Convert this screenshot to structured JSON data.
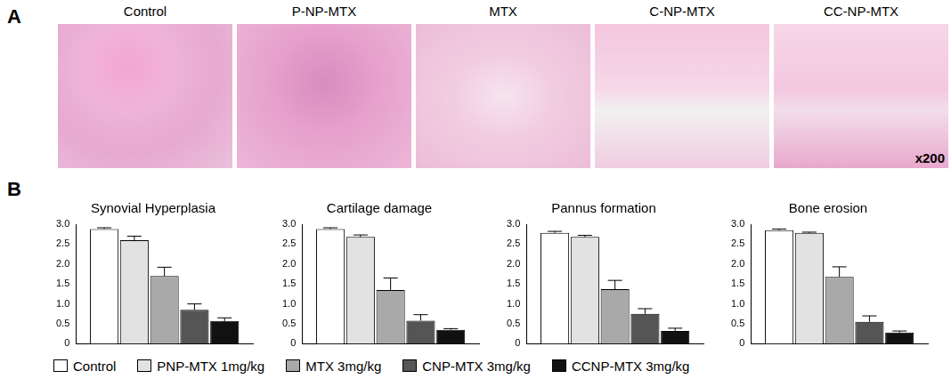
{
  "panels": {
    "A": {
      "letter": "A",
      "images": [
        {
          "label": "Control"
        },
        {
          "label": "P-NP-MTX"
        },
        {
          "label": "MTX"
        },
        {
          "label": "C-NP-MTX"
        },
        {
          "label": "CC-NP-MTX"
        }
      ],
      "magnification": "x200"
    },
    "B": {
      "letter": "B"
    }
  },
  "chart_data": [
    {
      "type": "bar",
      "title": "Synovial Hyperplasia",
      "categories": [
        null
      ],
      "ylim": [
        0,
        3
      ],
      "yticks": [
        0,
        0.5,
        {
          "value": 1,
          "label": "1.0"
        },
        1.5,
        {
          "value": 2,
          "label": "2.0"
        },
        2.5,
        {
          "value": 3,
          "label": "3.0"
        }
      ],
      "grid": false,
      "tick_labels": "y",
      "legend": "bottom",
      "series": [
        {
          "name": "Control",
          "color": "#ffffff",
          "values": [
            2.88
          ],
          "errors": [
            0.03
          ]
        },
        {
          "name": "PNP-MTX 1mg/kg",
          "color": "#e2e2e2",
          "values": [
            2.6
          ],
          "errors": [
            0.1
          ]
        },
        {
          "name": "MTX 3mg/kg",
          "color": "#a9a9a9",
          "values": [
            1.7
          ],
          "errors": [
            0.22
          ]
        },
        {
          "name": "CNP-MTX 3mg/kg",
          "color": "#555555",
          "values": [
            0.85
          ],
          "errors": [
            0.15
          ]
        },
        {
          "name": "CCNP-MTX 3mg/kg",
          "color": "#111111",
          "values": [
            0.57
          ],
          "errors": [
            0.08
          ]
        }
      ]
    },
    {
      "type": "bar",
      "title": "Cartilage damage",
      "categories": [
        null
      ],
      "ylim": [
        0,
        3
      ],
      "yticks": [
        0,
        0.5,
        {
          "value": 1,
          "label": "1.0"
        },
        1.5,
        {
          "value": 2,
          "label": "2.0"
        },
        2.5,
        {
          "value": 3,
          "label": "3.0"
        }
      ],
      "grid": false,
      "tick_labels": "y",
      "legend": "bottom",
      "series": [
        {
          "name": "Control",
          "color": "#ffffff",
          "values": [
            2.88
          ],
          "errors": [
            0.03
          ]
        },
        {
          "name": "PNP-MTX 1mg/kg",
          "color": "#e2e2e2",
          "values": [
            2.68
          ],
          "errors": [
            0.05
          ]
        },
        {
          "name": "MTX 3mg/kg",
          "color": "#a9a9a9",
          "values": [
            1.35
          ],
          "errors": [
            0.3
          ]
        },
        {
          "name": "CNP-MTX 3mg/kg",
          "color": "#555555",
          "values": [
            0.58
          ],
          "errors": [
            0.15
          ]
        },
        {
          "name": "CCNP-MTX 3mg/kg",
          "color": "#111111",
          "values": [
            0.35
          ],
          "errors": [
            0.03
          ]
        }
      ]
    },
    {
      "type": "bar",
      "title": "Pannus formation",
      "categories": [
        null
      ],
      "ylim": [
        0,
        3
      ],
      "yticks": [
        0,
        0.5,
        {
          "value": 1,
          "label": "1.0"
        },
        1.5,
        {
          "value": 2,
          "label": "2.0"
        },
        2.5,
        {
          "value": 3,
          "label": "3.0"
        }
      ],
      "grid": false,
      "tick_labels": "y",
      "legend": "bottom",
      "series": [
        {
          "name": "Control",
          "color": "#ffffff",
          "values": [
            2.78
          ],
          "errors": [
            0.04
          ]
        },
        {
          "name": "PNP-MTX 1mg/kg",
          "color": "#e2e2e2",
          "values": [
            2.68
          ],
          "errors": [
            0.04
          ]
        },
        {
          "name": "MTX 3mg/kg",
          "color": "#a9a9a9",
          "values": [
            1.37
          ],
          "errors": [
            0.22
          ]
        },
        {
          "name": "CNP-MTX 3mg/kg",
          "color": "#555555",
          "values": [
            0.75
          ],
          "errors": [
            0.13
          ]
        },
        {
          "name": "CCNP-MTX 3mg/kg",
          "color": "#111111",
          "values": [
            0.32
          ],
          "errors": [
            0.07
          ]
        }
      ]
    },
    {
      "type": "bar",
      "title": "Bone erosion",
      "categories": [
        null
      ],
      "ylim": [
        0,
        3
      ],
      "yticks": [
        0,
        0.5,
        {
          "value": 1,
          "label": "1.0"
        },
        1.5,
        {
          "value": 2,
          "label": "2.0"
        },
        2.5,
        {
          "value": 3,
          "label": "3.0"
        }
      ],
      "grid": false,
      "tick_labels": "y",
      "legend": "bottom",
      "series": [
        {
          "name": "Control",
          "color": "#ffffff",
          "values": [
            2.85
          ],
          "errors": [
            0.03
          ]
        },
        {
          "name": "PNP-MTX 1mg/kg",
          "color": "#e2e2e2",
          "values": [
            2.78
          ],
          "errors": [
            0.02
          ]
        },
        {
          "name": "MTX 3mg/kg",
          "color": "#a9a9a9",
          "values": [
            1.68
          ],
          "errors": [
            0.25
          ]
        },
        {
          "name": "CNP-MTX 3mg/kg",
          "color": "#555555",
          "values": [
            0.55
          ],
          "errors": [
            0.15
          ]
        },
        {
          "name": "CCNP-MTX 3mg/kg",
          "color": "#111111",
          "values": [
            0.28
          ],
          "errors": [
            0.04
          ]
        }
      ]
    }
  ]
}
